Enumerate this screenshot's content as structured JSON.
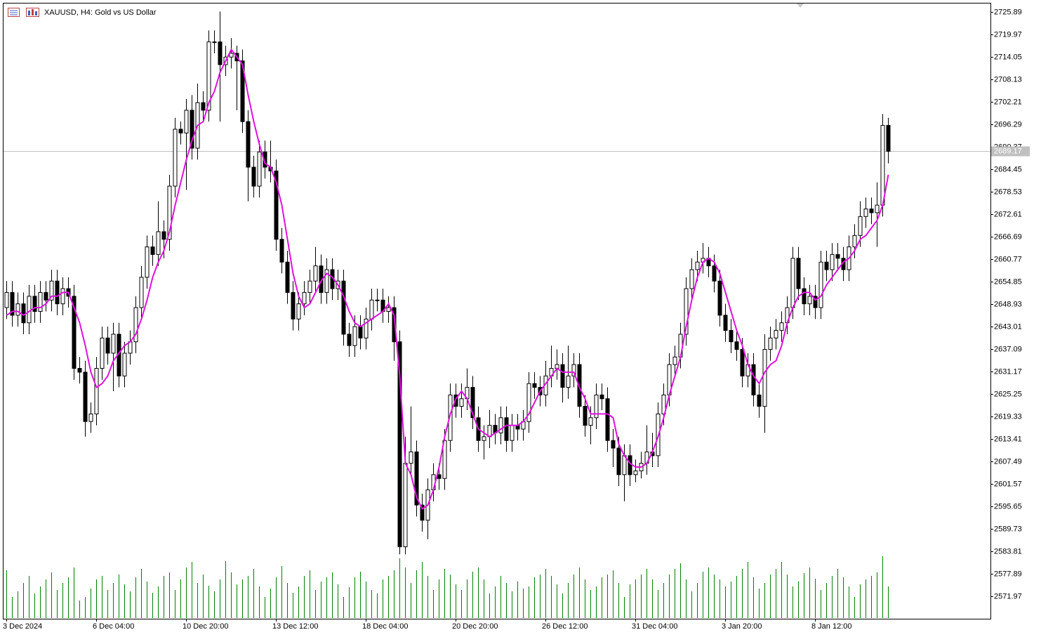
{
  "chart_data": {
    "type": "candlestick",
    "title": "XAUUSD, H4:  Gold vs US Dollar",
    "categories": [
      "3 Dec 2024",
      null,
      null,
      null,
      null,
      null,
      null,
      null,
      null,
      null,
      null,
      null,
      null,
      null,
      null,
      null,
      "6 Dec 04:00",
      null,
      null,
      null,
      null,
      null,
      null,
      null,
      null,
      null,
      null,
      null,
      null,
      null,
      null,
      null,
      "10 Dec 20:00",
      null,
      null,
      null,
      null,
      null,
      null,
      null,
      null,
      null,
      null,
      null,
      null,
      null,
      null,
      null,
      "13 Dec 12:00",
      null,
      null,
      null,
      null,
      null,
      null,
      null,
      null,
      null,
      null,
      null,
      null,
      null,
      null,
      null,
      "18 Dec 04:00",
      null,
      null,
      null,
      null,
      null,
      null,
      null,
      null,
      null,
      null,
      null,
      null,
      null,
      null,
      null,
      "20 Dec 20:00",
      null,
      null,
      null,
      null,
      null,
      null,
      null,
      null,
      null,
      null,
      null,
      null,
      null,
      null,
      null,
      "26 Dec 12:00",
      null,
      null,
      null,
      null,
      null,
      null,
      null,
      null,
      null,
      null,
      null,
      null,
      null,
      null,
      null,
      "31 Dec 04:00",
      null,
      null,
      null,
      null,
      null,
      null,
      null,
      null,
      null,
      null,
      null,
      null,
      null,
      null,
      null,
      "3 Jan 20:00",
      null,
      null,
      null,
      null,
      null,
      null,
      null,
      null,
      null,
      null,
      null,
      null,
      null,
      null,
      null,
      "8 Jan 12:00",
      null,
      null,
      null,
      null,
      null,
      null,
      null,
      null,
      null,
      null,
      null,
      null,
      null
    ],
    "open": [
      2648,
      2652,
      2646,
      2649,
      2644,
      2651,
      2647,
      2652,
      2650,
      2655,
      2649,
      2653,
      2651,
      2632,
      2631,
      2618,
      2620,
      2632,
      2640,
      2636,
      2641,
      2630,
      2636,
      2639,
      2648,
      2656,
      2664,
      2662,
      2668,
      2666,
      2680,
      2695,
      2694,
      2700,
      2690,
      2702,
      2700,
      2718,
      2718,
      2712,
      2714,
      2715,
      2713,
      2697,
      2685,
      2680,
      2689,
      2685,
      2684,
      2666,
      2660,
      2652,
      2645,
      2649,
      2652,
      2655,
      2659,
      2652,
      2658,
      2653,
      2655,
      2641,
      2638,
      2643,
      2640,
      2645,
      2650,
      2650,
      2647,
      2648,
      2639,
      2585,
      2607,
      2610,
      2596,
      2592,
      2600,
      2604,
      2603,
      2613,
      2625,
      2622,
      2624,
      2627,
      2619,
      2613,
      2614,
      2617,
      2615,
      2619,
      2613,
      2617,
      2616,
      2618,
      2628,
      2627,
      2625,
      2630,
      2632,
      2633,
      2627,
      2630,
      2633,
      2622,
      2617,
      2619,
      2625,
      2624,
      2613,
      2611,
      2604,
      2609,
      2604,
      2605,
      2607,
      2610,
      2609,
      2620,
      2625,
      2633,
      2635,
      2641,
      2653,
      2658,
      2660,
      2661,
      2659,
      2655,
      2646,
      2642,
      2639,
      2637,
      2630,
      2633,
      2625,
      2622,
      2637,
      2640,
      2642,
      2644,
      2648,
      2661,
      2653,
      2649,
      2651,
      2648,
      2660,
      2658,
      2662,
      2661,
      2658,
      2664,
      2667,
      2672,
      2674,
      2673,
      2675,
      2696
    ],
    "high": [
      2655,
      2655,
      2652,
      2652,
      2654,
      2654,
      2655,
      2655,
      2658,
      2658,
      2656,
      2656,
      2654,
      2635,
      2634,
      2623,
      2635,
      2643,
      2643,
      2644,
      2644,
      2639,
      2642,
      2651,
      2659,
      2667,
      2667,
      2676,
      2671,
      2683,
      2698,
      2697,
      2703,
      2704,
      2707,
      2705,
      2721,
      2721,
      2726,
      2717,
      2719,
      2717,
      2716,
      2700,
      2688,
      2692,
      2692,
      2692,
      2687,
      2669,
      2663,
      2655,
      2652,
      2655,
      2658,
      2664,
      2662,
      2661,
      2661,
      2658,
      2658,
      2644,
      2646,
      2646,
      2648,
      2653,
      2653,
      2653,
      2651,
      2651,
      2642,
      2614,
      2622,
      2613,
      2599,
      2603,
      2607,
      2607,
      2616,
      2628,
      2628,
      2628,
      2632,
      2630,
      2622,
      2617,
      2621,
      2620,
      2622,
      2622,
      2620,
      2620,
      2621,
      2631,
      2631,
      2630,
      2634,
      2638,
      2637,
      2636,
      2638,
      2636,
      2636,
      2625,
      2622,
      2628,
      2628,
      2627,
      2616,
      2614,
      2612,
      2612,
      2608,
      2610,
      2617,
      2615,
      2623,
      2628,
      2636,
      2638,
      2644,
      2656,
      2661,
      2663,
      2665,
      2664,
      2662,
      2658,
      2649,
      2645,
      2642,
      2640,
      2636,
      2636,
      2628,
      2641,
      2643,
      2645,
      2647,
      2651,
      2664,
      2664,
      2656,
      2654,
      2654,
      2663,
      2663,
      2665,
      2665,
      2664,
      2667,
      2670,
      2676,
      2677,
      2677,
      2681,
      2699,
      2698
    ],
    "low": [
      2645,
      2643,
      2643,
      2641,
      2641,
      2644,
      2644,
      2647,
      2647,
      2646,
      2646,
      2648,
      2629,
      2628,
      2614,
      2615,
      2617,
      2629,
      2633,
      2626,
      2627,
      2627,
      2633,
      2636,
      2645,
      2653,
      2659,
      2659,
      2661,
      2663,
      2677,
      2691,
      2679,
      2687,
      2687,
      2697,
      2697,
      2715,
      2697,
      2709,
      2711,
      2700,
      2694,
      2676,
      2677,
      2677,
      2682,
      2681,
      2663,
      2657,
      2649,
      2642,
      2642,
      2646,
      2649,
      2652,
      2649,
      2649,
      2650,
      2650,
      2638,
      2635,
      2635,
      2637,
      2637,
      2642,
      2647,
      2644,
      2644,
      2634,
      2583,
      2583,
      2604,
      2593,
      2589,
      2587,
      2597,
      2600,
      2600,
      2610,
      2619,
      2619,
      2621,
      2616,
      2610,
      2608,
      2611,
      2612,
      2612,
      2610,
      2610,
      2613,
      2613,
      2615,
      2624,
      2622,
      2622,
      2627,
      2629,
      2623,
      2624,
      2627,
      2619,
      2614,
      2612,
      2616,
      2621,
      2610,
      2606,
      2601,
      2597,
      2601,
      2602,
      2603,
      2604,
      2606,
      2606,
      2617,
      2622,
      2630,
      2632,
      2638,
      2650,
      2655,
      2657,
      2656,
      2652,
      2643,
      2639,
      2636,
      2634,
      2627,
      2627,
      2622,
      2619,
      2615,
      2634,
      2637,
      2639,
      2641,
      2645,
      2650,
      2646,
      2646,
      2645,
      2645,
      2655,
      2655,
      2658,
      2655,
      2655,
      2661,
      2664,
      2669,
      2670,
      2664,
      2672,
      2686
    ],
    "close": [
      2652,
      2646,
      2649,
      2644,
      2651,
      2647,
      2652,
      2650,
      2655,
      2649,
      2653,
      2651,
      2632,
      2631,
      2618,
      2620,
      2632,
      2640,
      2636,
      2641,
      2630,
      2636,
      2639,
      2648,
      2656,
      2664,
      2662,
      2668,
      2666,
      2680,
      2695,
      2694,
      2700,
      2690,
      2702,
      2700,
      2718,
      2718,
      2712,
      2714,
      2715,
      2713,
      2697,
      2685,
      2680,
      2689,
      2685,
      2684,
      2666,
      2660,
      2652,
      2645,
      2649,
      2652,
      2655,
      2659,
      2652,
      2658,
      2653,
      2655,
      2641,
      2638,
      2643,
      2640,
      2645,
      2650,
      2650,
      2647,
      2648,
      2639,
      2585,
      2607,
      2610,
      2596,
      2592,
      2600,
      2604,
      2603,
      2613,
      2625,
      2622,
      2624,
      2627,
      2619,
      2613,
      2614,
      2617,
      2615,
      2619,
      2613,
      2617,
      2616,
      2618,
      2628,
      2627,
      2625,
      2630,
      2632,
      2633,
      2627,
      2630,
      2633,
      2622,
      2617,
      2619,
      2625,
      2624,
      2613,
      2611,
      2604,
      2609,
      2604,
      2605,
      2607,
      2610,
      2609,
      2620,
      2625,
      2633,
      2635,
      2641,
      2653,
      2658,
      2660,
      2661,
      2659,
      2655,
      2646,
      2642,
      2639,
      2637,
      2630,
      2633,
      2625,
      2622,
      2637,
      2640,
      2642,
      2644,
      2648,
      2661,
      2653,
      2649,
      2651,
      2648,
      2660,
      2658,
      2662,
      2661,
      2658,
      2664,
      2667,
      2672,
      2674,
      2673,
      2675,
      2696,
      2689.17
    ],
    "ma": [
      2646,
      2647,
      2647,
      2646,
      2647,
      2648,
      2648,
      2649,
      2651,
      2651,
      2652,
      2652,
      2648,
      2644,
      2638,
      2631,
      2627,
      2628,
      2630,
      2634,
      2636,
      2638,
      2639,
      2641,
      2645,
      2650,
      2656,
      2660,
      2663,
      2668,
      2675,
      2681,
      2687,
      2692,
      2696,
      2697,
      2702,
      2705,
      2710,
      2713,
      2716,
      2714,
      2712,
      2704,
      2697,
      2691,
      2686,
      2685,
      2681,
      2675,
      2666,
      2657,
      2651,
      2648,
      2649,
      2652,
      2655,
      2657,
      2656,
      2654,
      2651,
      2647,
      2644,
      2643,
      2644,
      2645,
      2646,
      2647,
      2649,
      2646,
      2630,
      2607,
      2604,
      2598,
      2595,
      2596,
      2600,
      2606,
      2614,
      2620,
      2624,
      2626,
      2624,
      2620,
      2616,
      2615,
      2614,
      2615,
      2616,
      2617,
      2617,
      2617,
      2618,
      2620,
      2623,
      2626,
      2628,
      2630,
      2632,
      2631,
      2631,
      2631,
      2627,
      2624,
      2620,
      2620,
      2620,
      2620,
      2619,
      2612,
      2609,
      2607,
      2606,
      2606,
      2607,
      2610,
      2614,
      2619,
      2625,
      2630,
      2635,
      2643,
      2650,
      2656,
      2660,
      2661,
      2660,
      2657,
      2652,
      2647,
      2642,
      2638,
      2633,
      2630,
      2628,
      2631,
      2633,
      2634,
      2638,
      2644,
      2648,
      2651,
      2652,
      2652,
      2650,
      2651,
      2654,
      2656,
      2658,
      2660,
      2661,
      2663,
      2666,
      2667,
      2669,
      2671,
      2675,
      2683
    ],
    "volume": [
      68,
      30,
      38,
      50,
      60,
      35,
      45,
      55,
      65,
      40,
      50,
      58,
      72,
      25,
      30,
      42,
      55,
      60,
      40,
      50,
      62,
      48,
      38,
      58,
      70,
      52,
      36,
      45,
      60,
      65,
      40,
      55,
      72,
      80,
      50,
      62,
      46,
      38,
      55,
      81,
      65,
      48,
      55,
      60,
      70,
      45,
      30,
      42,
      58,
      74,
      50,
      36,
      45,
      60,
      68,
      40,
      52,
      58,
      65,
      48,
      30,
      44,
      58,
      66,
      52,
      40,
      35,
      55,
      60,
      68,
      85,
      72,
      50,
      68,
      80,
      60,
      40,
      55,
      70,
      62,
      48,
      40,
      55,
      66,
      72,
      55,
      35,
      45,
      60,
      50,
      38,
      52,
      42,
      45,
      58,
      62,
      70,
      60,
      48,
      35,
      50,
      62,
      72,
      55,
      40,
      45,
      58,
      62,
      68,
      50,
      30,
      48,
      55,
      62,
      70,
      55,
      40,
      50,
      62,
      70,
      78,
      55,
      38,
      50,
      66,
      72,
      62,
      55,
      45,
      52,
      60,
      70,
      80,
      58,
      42,
      50,
      62,
      70,
      80,
      62,
      45,
      52,
      64,
      72,
      56,
      40,
      50,
      60,
      70,
      58,
      45,
      30,
      48,
      55,
      60,
      65,
      88,
      45
    ],
    "current_price": 2689.17,
    "ylim": [
      2566.05,
      2728.11
    ],
    "yticks": [
      2725.89,
      2719.97,
      2714.05,
      2708.13,
      2702.21,
      2696.29,
      2690.37,
      2684.45,
      2678.53,
      2672.61,
      2666.69,
      2660.77,
      2654.85,
      2648.93,
      2643.01,
      2637.09,
      2631.17,
      2625.25,
      2619.33,
      2613.41,
      2607.49,
      2601.57,
      2595.65,
      2589.73,
      2583.81,
      2577.89,
      2571.97
    ],
    "up_color": "#ffffff",
    "down_color": "#000000",
    "ma_color": "#e010e0",
    "volume_color": "#008000",
    "price_line_color": "#c0c0c0"
  }
}
